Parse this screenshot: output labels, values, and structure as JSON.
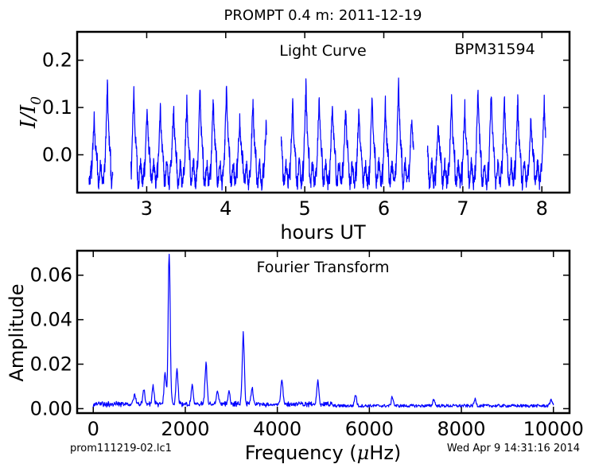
{
  "header": {
    "title": "PROMPT 0.4 m:  2011-12-19"
  },
  "footer": {
    "filename": "prom111219-02.lc1",
    "timestamp": "Wed Apr  9 14:31:16 2014"
  },
  "colors": {
    "line": "#0000ff",
    "axes": "#000000"
  },
  "chart_data": [
    {
      "type": "line",
      "title": "Light Curve",
      "annotation": "BPM31594",
      "xlabel": "hours UT",
      "ylabel_main": "I/I",
      "ylabel_sub": "0",
      "xlim": [
        2.12,
        8.35
      ],
      "ylim": [
        -0.08,
        0.26
      ],
      "xticks": [
        3,
        4,
        5,
        6,
        7,
        8
      ],
      "yticks": [
        0.0,
        0.1,
        0.2
      ],
      "ytick_labels": [
        "0.0",
        "0.1",
        "0.2"
      ],
      "segments": [
        {
          "start": 2.27,
          "end": 2.57
        },
        {
          "start": 2.8,
          "end": 4.52
        },
        {
          "start": 4.7,
          "end": 6.38
        },
        {
          "start": 6.55,
          "end": 8.05
        }
      ],
      "series_description": "pulsating light curve, dominant period about 0.167 h (~1660 uHz), amplitude ~0.1"
    },
    {
      "type": "line",
      "title": "Fourier Transform",
      "xlabel": "Frequency (μHz)",
      "xlabel_prefix": "Frequency (",
      "xlabel_unit": "μ",
      "xlabel_suffix": "Hz)",
      "ylabel": "Amplitude",
      "xlim": [
        -350,
        10350
      ],
      "ylim": [
        -0.002,
        0.071
      ],
      "xticks": [
        0,
        2000,
        4000,
        6000,
        8000,
        10000
      ],
      "yticks": [
        0.0,
        0.02,
        0.04,
        0.06
      ],
      "ytick_labels": [
        "0.00",
        "0.02",
        "0.04",
        "0.06"
      ],
      "x_range": [
        0,
        10000
      ],
      "peaks": [
        {
          "x": 1650,
          "y": 0.068
        },
        {
          "x": 3260,
          "y": 0.032
        },
        {
          "x": 2450,
          "y": 0.018
        },
        {
          "x": 1820,
          "y": 0.015
        },
        {
          "x": 1560,
          "y": 0.014
        },
        {
          "x": 4100,
          "y": 0.011
        },
        {
          "x": 4880,
          "y": 0.011
        },
        {
          "x": 2150,
          "y": 0.008
        },
        {
          "x": 3450,
          "y": 0.007
        },
        {
          "x": 5700,
          "y": 0.005
        },
        {
          "x": 1300,
          "y": 0.008
        },
        {
          "x": 1100,
          "y": 0.006
        },
        {
          "x": 900,
          "y": 0.005
        },
        {
          "x": 2700,
          "y": 0.006
        },
        {
          "x": 2950,
          "y": 0.006
        },
        {
          "x": 6500,
          "y": 0.004
        },
        {
          "x": 7400,
          "y": 0.003
        },
        {
          "x": 8300,
          "y": 0.003
        },
        {
          "x": 9950,
          "y": 0.003
        }
      ],
      "noise_level": 0.0015
    }
  ]
}
